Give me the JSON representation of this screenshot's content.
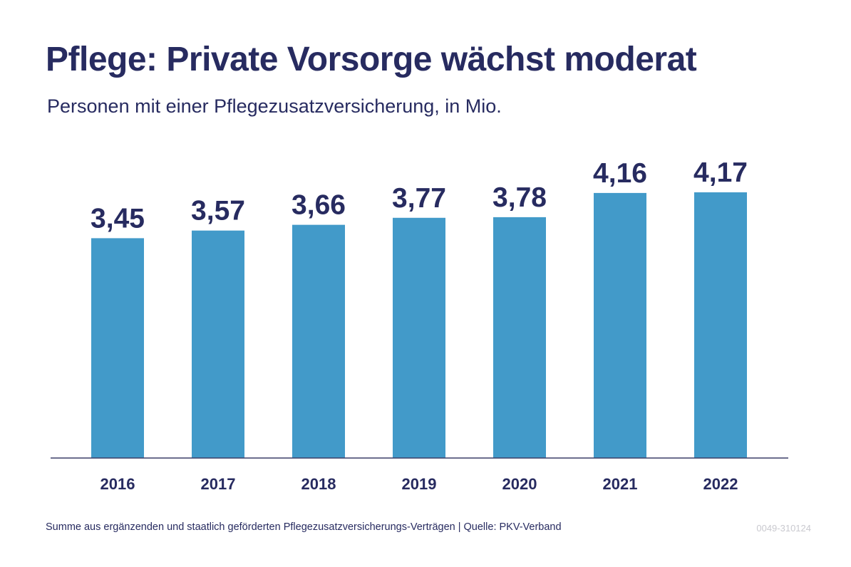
{
  "header": {
    "title": "Pflege: Private Vorsorge wächst moderat",
    "subtitle": "Personen mit einer Pflegezusatzversicherung, in Mio."
  },
  "footer": {
    "note": "Summe aus ergänzenden und staatlich geförderten Pflegezusatzversicherungs-Verträgen  |  Quelle: PKV-Verband",
    "code": "0049-310124"
  },
  "colors": {
    "bar": "#429ac9",
    "text": "#272b60",
    "axis": "#3b3f68"
  },
  "chart_data": {
    "type": "bar",
    "title": "Pflege: Private Vorsorge wächst moderat",
    "subtitle": "Personen mit einer Pflegezusatzversicherung, in Mio.",
    "categories": [
      "2016",
      "2017",
      "2018",
      "2019",
      "2020",
      "2021",
      "2022"
    ],
    "values": [
      3.45,
      3.57,
      3.66,
      3.77,
      3.78,
      4.16,
      4.17
    ],
    "value_labels": [
      "3,45",
      "3,57",
      "3,66",
      "3,77",
      "3,78",
      "4,16",
      "4,17"
    ],
    "xlabel": "",
    "ylabel": "",
    "ylim": [
      0,
      4.17
    ],
    "grid": false,
    "legend": "none"
  }
}
